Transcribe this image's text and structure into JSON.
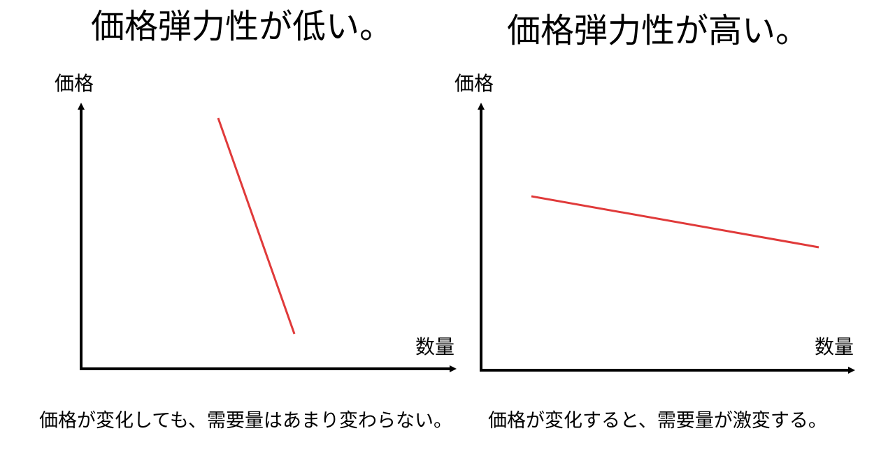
{
  "left_panel": {
    "title": "価格弾力性が低い。",
    "y_axis_label": "価格",
    "x_axis_label": "数量",
    "caption": "価格が変化しても、需要量はあまり変わらない。"
  },
  "right_panel": {
    "title": "価格弾力性が高い。",
    "y_axis_label": "価格",
    "x_axis_label": "数量",
    "caption": "価格が変化すると、需要量が激変する。"
  },
  "colors": {
    "axis": "#000000",
    "demand_line": "#e03a3a"
  }
}
